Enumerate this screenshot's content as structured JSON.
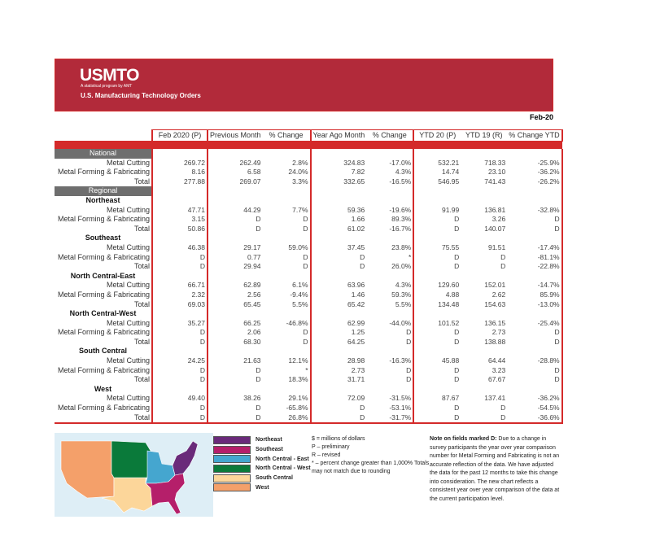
{
  "header": {
    "logo": "USMTO",
    "tagline": "A statistical program by AMT",
    "subtitle": "U.S. Manufacturing Technology Orders",
    "period": "Feb-20"
  },
  "columns": [
    "Feb 2020 (P)",
    "Previous Month",
    "% Change",
    "Year Ago Month",
    "% Change",
    "YTD 20 (P)",
    "YTD 19 (R)",
    "% Change YTD"
  ],
  "national": {
    "label": "National",
    "rows": [
      {
        "label": "Metal Cutting",
        "values": [
          "269.72",
          "262.49",
          "2.8%",
          "324.83",
          "-17.0%",
          "532.21",
          "718.33",
          "-25.9%"
        ]
      },
      {
        "label": "Metal Forming & Fabricating",
        "values": [
          "8.16",
          "6.58",
          "24.0%",
          "7.82",
          "4.3%",
          "14.74",
          "23.10",
          "-36.2%"
        ]
      },
      {
        "label": "Total",
        "values": [
          "277.88",
          "269.07",
          "3.3%",
          "332.65",
          "-16.5%",
          "546.95",
          "741.43",
          "-26.2%"
        ]
      }
    ]
  },
  "regional_label": "Regional",
  "regions": [
    {
      "name": "Northeast",
      "rows": [
        {
          "label": "Metal Cutting",
          "values": [
            "47.71",
            "44.29",
            "7.7%",
            "59.36",
            "-19.6%",
            "91.99",
            "136.81",
            "-32.8%"
          ]
        },
        {
          "label": "Metal Forming & Fabricating",
          "values": [
            "3.15",
            "D",
            "D",
            "1.66",
            "89.3%",
            "D",
            "3.26",
            "D"
          ]
        },
        {
          "label": "Total",
          "values": [
            "50.86",
            "D",
            "D",
            "61.02",
            "-16.7%",
            "D",
            "140.07",
            "D"
          ]
        }
      ]
    },
    {
      "name": "Southeast",
      "rows": [
        {
          "label": "Metal Cutting",
          "values": [
            "46.38",
            "29.17",
            "59.0%",
            "37.45",
            "23.8%",
            "75.55",
            "91.51",
            "-17.4%"
          ]
        },
        {
          "label": "Metal Forming & Fabricating",
          "values": [
            "D",
            "0.77",
            "D",
            "D",
            "*",
            "D",
            "D",
            "-81.1%"
          ]
        },
        {
          "label": "Total",
          "values": [
            "D",
            "29.94",
            "D",
            "D",
            "26.0%",
            "D",
            "D",
            "-22.8%"
          ]
        }
      ]
    },
    {
      "name": "North Central-East",
      "rows": [
        {
          "label": "Metal Cutting",
          "values": [
            "66.71",
            "62.89",
            "6.1%",
            "63.96",
            "4.3%",
            "129.60",
            "152.01",
            "-14.7%"
          ]
        },
        {
          "label": "Metal Forming & Fabricating",
          "values": [
            "2.32",
            "2.56",
            "-9.4%",
            "1.46",
            "59.3%",
            "4.88",
            "2.62",
            "85.9%"
          ]
        },
        {
          "label": "Total",
          "values": [
            "69.03",
            "65.45",
            "5.5%",
            "65.42",
            "5.5%",
            "134.48",
            "154.63",
            "-13.0%"
          ]
        }
      ]
    },
    {
      "name": "North Central-West",
      "rows": [
        {
          "label": "Metal Cutting",
          "values": [
            "35.27",
            "66.25",
            "-46.8%",
            "62.99",
            "-44.0%",
            "101.52",
            "136.15",
            "-25.4%"
          ]
        },
        {
          "label": "Metal Forming & Fabricating",
          "values": [
            "D",
            "2.06",
            "D",
            "1.25",
            "D",
            "D",
            "2.73",
            "D"
          ]
        },
        {
          "label": "Total",
          "values": [
            "D",
            "68.30",
            "D",
            "64.25",
            "D",
            "D",
            "138.88",
            "D"
          ]
        }
      ]
    },
    {
      "name": "South Central",
      "rows": [
        {
          "label": "Metal Cutting",
          "values": [
            "24.25",
            "21.63",
            "12.1%",
            "28.98",
            "-16.3%",
            "45.88",
            "64.44",
            "-28.8%"
          ]
        },
        {
          "label": "Metal Forming & Fabricating",
          "values": [
            "D",
            "D",
            "*",
            "2.73",
            "D",
            "D",
            "3.23",
            "D"
          ]
        },
        {
          "label": "Total",
          "values": [
            "D",
            "D",
            "18.3%",
            "31.71",
            "D",
            "D",
            "67.67",
            "D"
          ]
        }
      ]
    },
    {
      "name": "West",
      "rows": [
        {
          "label": "Metal Cutting",
          "values": [
            "49.40",
            "38.26",
            "29.1%",
            "72.09",
            "-31.5%",
            "87.67",
            "137.41",
            "-36.2%"
          ]
        },
        {
          "label": "Metal Forming & Fabricating",
          "values": [
            "D",
            "D",
            "-65.8%",
            "D",
            "-53.1%",
            "D",
            "D",
            "-54.5%"
          ]
        },
        {
          "label": "Total",
          "values": [
            "D",
            "D",
            "26.8%",
            "D",
            "-31.7%",
            "D",
            "D",
            "-36.6%"
          ]
        }
      ]
    }
  ],
  "legend": [
    {
      "label": "Northeast",
      "color": "#6a2a7a"
    },
    {
      "label": "Southeast",
      "color": "#b51f6a"
    },
    {
      "label": "North Central - East",
      "color": "#45a6cf"
    },
    {
      "label": "North Central - West",
      "color": "#0a7a3a"
    },
    {
      "label": "South Central",
      "color": "#fcd69a"
    },
    {
      "label": "West",
      "color": "#f4a06a"
    }
  ],
  "notes": [
    "$ = millions of dollars",
    "P – preliminary",
    "R – revised",
    "* – percent change greater than 1,000% Totals may not match due to rounding"
  ],
  "note_d": {
    "bold": "Note on fields marked D:",
    "text": " Due to a change in survey participants the year over year comparison number for Metal Forming and Fabricating is not an accurate reflection of the data. We have adjusted the data for the past 12 months to take this change into consideration. The new chart reflects a consistent year over year comparison of the data at the current participation level."
  },
  "accent": "#d42a2a",
  "banner_color": "#b22a3a"
}
